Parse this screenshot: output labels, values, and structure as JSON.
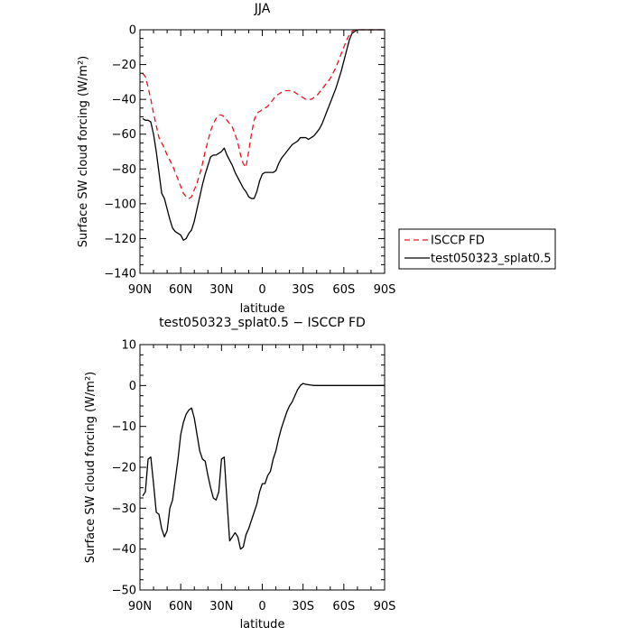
{
  "chart_data": [
    {
      "type": "line",
      "title": "JJA",
      "xlabel": "latitude",
      "ylabel": "Surface SW cloud forcing (W/m²)",
      "xlim": [
        90,
        -90
      ],
      "ylim": [
        -140,
        0
      ],
      "x_ticks": [
        {
          "value": 90,
          "label": "90N"
        },
        {
          "value": 60,
          "label": "60N"
        },
        {
          "value": 30,
          "label": "30N"
        },
        {
          "value": 0,
          "label": "0"
        },
        {
          "value": -30,
          "label": "30S"
        },
        {
          "value": -60,
          "label": "60S"
        },
        {
          "value": -90,
          "label": "90S"
        }
      ],
      "y_ticks": [
        0,
        -20,
        -40,
        -60,
        -80,
        -100,
        -120,
        -140
      ],
      "legend_position": "right",
      "series": [
        {
          "name": "ISCCP FD",
          "color": "#e8141c",
          "dash": "dashed",
          "x": [
            88,
            86,
            84,
            82,
            80,
            78,
            76,
            74,
            72,
            70,
            68,
            66,
            64,
            62,
            60,
            58,
            56,
            54,
            52,
            50,
            48,
            46,
            44,
            42,
            40,
            38,
            36,
            34,
            32,
            30,
            28,
            26,
            24,
            22,
            20,
            18,
            16,
            14,
            12,
            10,
            8,
            6,
            4,
            2,
            0,
            -2,
            -4,
            -6,
            -8,
            -10,
            -12,
            -14,
            -16,
            -18,
            -20,
            -22,
            -24,
            -26,
            -28,
            -30,
            -32,
            -34,
            -36,
            -38,
            -40,
            -42,
            -44,
            -46,
            -48,
            -50,
            -52,
            -54,
            -56,
            -58,
            -60,
            -62,
            -64,
            -66,
            -68,
            -70,
            -72,
            -74,
            -76,
            -78,
            -80,
            -82,
            -84,
            -86,
            -88,
            -90
          ],
          "y": [
            -25,
            -27,
            -33,
            -40,
            -48,
            -55,
            -62,
            -65,
            -68,
            -72,
            -75,
            -78,
            -82,
            -86,
            -90,
            -94,
            -96,
            -97,
            -96,
            -92,
            -88,
            -83,
            -77,
            -70,
            -64,
            -58,
            -54,
            -51,
            -49,
            -49,
            -50,
            -52,
            -54,
            -56,
            -60,
            -65,
            -72,
            -77,
            -79,
            -70,
            -60,
            -52,
            -48,
            -47,
            -46,
            -45,
            -44,
            -42,
            -40,
            -38,
            -37,
            -36,
            -35,
            -35,
            -35,
            -35,
            -36,
            -37,
            -38,
            -39,
            -40,
            -40,
            -40,
            -39,
            -38,
            -36,
            -34,
            -32,
            -30,
            -28,
            -25,
            -22,
            -18,
            -14,
            -10,
            -6,
            -3,
            -1,
            0,
            0,
            0,
            0,
            0,
            0,
            0,
            0,
            0,
            0,
            0,
            0
          ]
        },
        {
          "name": "test050323_splat0.5",
          "color": "#000000",
          "dash": "solid",
          "x": [
            88,
            86,
            84,
            82,
            80,
            78,
            76,
            74,
            72,
            70,
            68,
            66,
            64,
            62,
            60,
            58,
            56,
            54,
            52,
            50,
            48,
            46,
            44,
            42,
            40,
            38,
            36,
            34,
            32,
            30,
            28,
            26,
            24,
            22,
            20,
            18,
            16,
            14,
            12,
            10,
            8,
            6,
            4,
            2,
            0,
            -2,
            -4,
            -6,
            -8,
            -10,
            -12,
            -14,
            -16,
            -18,
            -20,
            -22,
            -24,
            -26,
            -28,
            -30,
            -32,
            -34,
            -36,
            -38,
            -40,
            -42,
            -44,
            -46,
            -48,
            -50,
            -52,
            -54,
            -56,
            -58,
            -60,
            -62,
            -64,
            -66,
            -68,
            -70,
            -72,
            -74,
            -76,
            -78,
            -80,
            -82,
            -84,
            -86,
            -88,
            -90
          ],
          "y": [
            -51,
            -52,
            -52,
            -53,
            -60,
            -70,
            -82,
            -94,
            -97,
            -103,
            -109,
            -114,
            -116,
            -117,
            -118,
            -121,
            -120,
            -117,
            -115,
            -110,
            -103,
            -96,
            -89,
            -83,
            -78,
            -73,
            -72,
            -72,
            -71,
            -70,
            -68,
            -72,
            -75,
            -78,
            -82,
            -85,
            -88,
            -91,
            -93,
            -96,
            -97,
            -97,
            -93,
            -87,
            -83,
            -82,
            -82,
            -82,
            -82,
            -81,
            -77,
            -74,
            -72,
            -70,
            -68,
            -66,
            -65,
            -64,
            -62,
            -62,
            -62,
            -63,
            -62,
            -61,
            -59,
            -57,
            -54,
            -50,
            -46,
            -42,
            -38,
            -34,
            -29,
            -24,
            -18,
            -12,
            -6,
            -2,
            -1,
            0,
            0,
            0,
            0,
            0,
            0,
            0,
            0,
            0,
            0,
            0
          ]
        }
      ]
    },
    {
      "type": "line",
      "title": "test050323_splat0.5 − ISCCP FD",
      "xlabel": "latitude",
      "ylabel": "Surface SW cloud forcing (W/m²)",
      "xlim": [
        90,
        -90
      ],
      "ylim": [
        -50,
        10
      ],
      "x_ticks": [
        {
          "value": 90,
          "label": "90N"
        },
        {
          "value": 60,
          "label": "60N"
        },
        {
          "value": 30,
          "label": "30N"
        },
        {
          "value": 0,
          "label": "0"
        },
        {
          "value": -30,
          "label": "30S"
        },
        {
          "value": -60,
          "label": "60S"
        },
        {
          "value": -90,
          "label": "90S"
        }
      ],
      "y_ticks": [
        10,
        0,
        -10,
        -20,
        -30,
        -40,
        -50
      ],
      "series": [
        {
          "color": "#000000",
          "dash": "solid",
          "x": [
            88,
            86,
            84,
            82,
            80,
            78,
            76,
            74,
            72,
            70,
            68,
            66,
            64,
            62,
            60,
            58,
            56,
            54,
            52,
            50,
            48,
            46,
            44,
            42,
            40,
            38,
            36,
            34,
            32,
            30,
            28,
            26,
            24,
            22,
            20,
            18,
            16,
            14,
            12,
            10,
            8,
            6,
            4,
            2,
            0,
            -2,
            -4,
            -6,
            -8,
            -10,
            -12,
            -14,
            -16,
            -18,
            -20,
            -22,
            -24,
            -26,
            -28,
            -30,
            -32,
            -34,
            -36,
            -38,
            -40,
            -42,
            -44,
            -46,
            -48,
            -50,
            -52,
            -54,
            -56,
            -58,
            -60,
            -62,
            -64,
            -66,
            -68,
            -70,
            -72,
            -74,
            -76,
            -78,
            -80,
            -82,
            -84,
            -86,
            -88,
            -90
          ],
          "y": [
            -27,
            -26,
            -18,
            -17.5,
            -24,
            -31,
            -31.5,
            -35,
            -37,
            -35.5,
            -30,
            -28,
            -23,
            -18,
            -12,
            -9,
            -7,
            -6,
            -5.5,
            -8,
            -12,
            -16,
            -18,
            -18.5,
            -22,
            -25,
            -27.5,
            -28,
            -26,
            -18,
            -17.5,
            -28,
            -38,
            -37,
            -36,
            -37,
            -40,
            -39.5,
            -36.5,
            -35,
            -33,
            -31,
            -29,
            -26,
            -24,
            -24,
            -22,
            -21,
            -18,
            -16,
            -13,
            -10.5,
            -8.5,
            -6.5,
            -5,
            -4,
            -2.5,
            -1,
            0,
            0.5,
            0.3,
            0.2,
            0.1,
            0,
            0,
            0,
            0,
            0,
            0,
            0,
            0,
            0,
            0,
            0,
            0,
            0,
            0,
            0,
            0,
            0,
            0,
            0,
            0,
            0,
            0,
            0,
            0,
            0,
            0,
            0
          ]
        }
      ]
    }
  ]
}
